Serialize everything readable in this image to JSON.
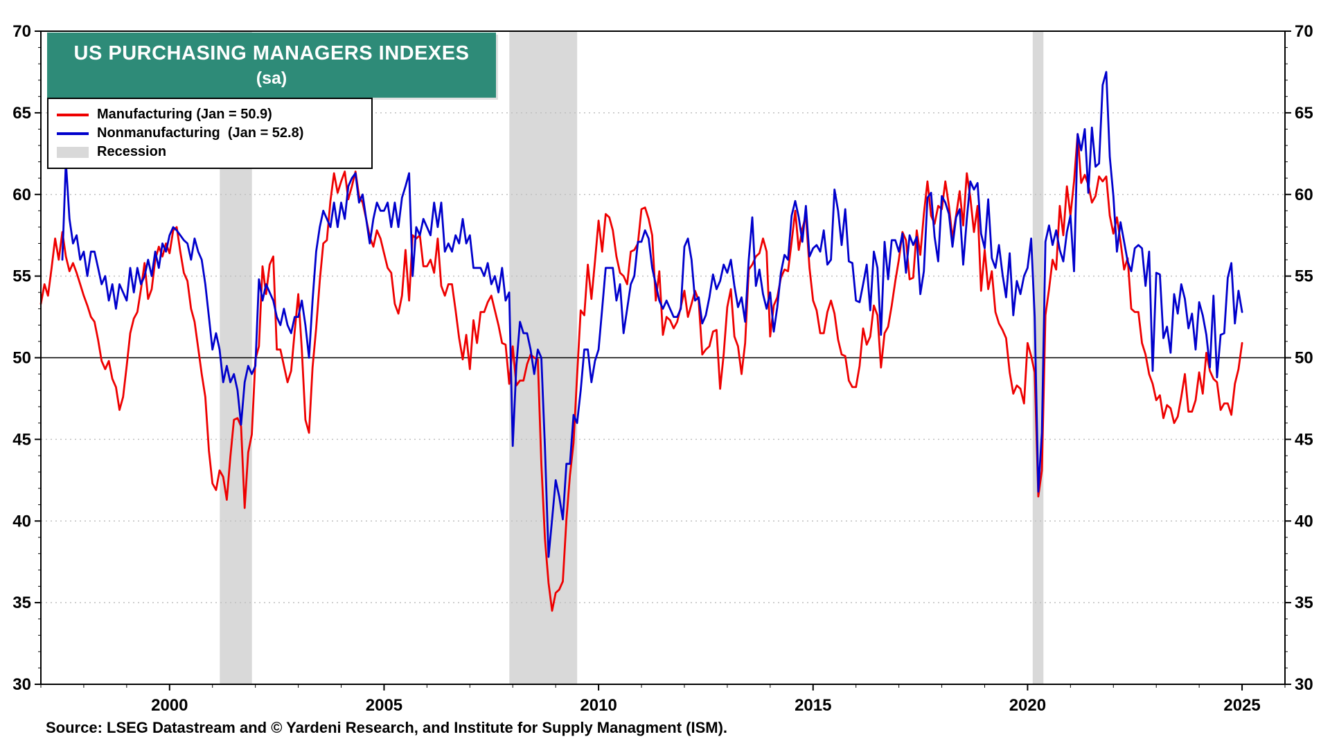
{
  "title": {
    "line1": "US PURCHASING MANAGERS INDEXES",
    "line2": "(sa)",
    "bg_color": "#2E8B78",
    "text_color": "#FFFFFF"
  },
  "legend": {
    "items": [
      {
        "label": "Manufacturing (Jan = 50.9)",
        "color": "#EE0000",
        "swatch": "line"
      },
      {
        "label": "Nonmanufacturing  (Jan = 52.8)",
        "color": "#0000CC",
        "swatch": "line"
      },
      {
        "label": "Recession",
        "color": "#D9D9D9",
        "swatch": "box"
      }
    ]
  },
  "source": "Source: LSEG Datastream and © Yardeni Research, and Institute for Supply Managment (ISM).",
  "chart_data": {
    "type": "line",
    "title": "US PURCHASING MANAGERS INDEXES (sa)",
    "x_range": [
      1997,
      2026
    ],
    "y_range": [
      30,
      70
    ],
    "y_ticks": [
      30,
      35,
      40,
      45,
      50,
      55,
      60,
      65,
      70
    ],
    "x_ticks": [
      2000,
      2005,
      2010,
      2015,
      2020,
      2025
    ],
    "reference_line": 50,
    "grid": "dashed horizontal lines every 5 units, solid line at 50",
    "legend_position": "top-left",
    "recession_color": "#D9D9D9",
    "recessions": [
      [
        2001.17,
        2001.92
      ],
      [
        2007.92,
        2009.5
      ],
      [
        2020.12,
        2020.37
      ]
    ],
    "frequency": "monthly",
    "series": [
      {
        "name": "Manufacturing",
        "color": "#EE0000",
        "start_x": 1997.0,
        "values": [
          53.3,
          54.5,
          53.8,
          55.5,
          57.3,
          56.0,
          57.7,
          56.2,
          55.3,
          55.8,
          55.2,
          54.5,
          53.8,
          53.2,
          52.5,
          52.2,
          51.1,
          49.8,
          49.3,
          49.8,
          48.7,
          48.2,
          46.8,
          47.6,
          49.5,
          51.5,
          52.4,
          52.8,
          54.2,
          55.8,
          53.6,
          54.2,
          56.0,
          56.8,
          56.2,
          57.0,
          56.4,
          57.8,
          58.0,
          56.5,
          55.2,
          54.7,
          53.0,
          52.2,
          50.6,
          49.0,
          47.6,
          44.3,
          42.3,
          41.9,
          43.1,
          42.7,
          41.3,
          43.9,
          46.2,
          46.3,
          45.8,
          40.8,
          44.2,
          45.3,
          49.9,
          50.7,
          55.6,
          53.9,
          55.7,
          56.2,
          50.5,
          50.5,
          49.5,
          48.5,
          49.2,
          51.6,
          53.9,
          50.5,
          46.2,
          45.4,
          49.4,
          51.8,
          54.7,
          57.0,
          57.2,
          59.6,
          61.3,
          60.1,
          60.8,
          61.4,
          59.7,
          60.5,
          61.4,
          59.9,
          59.5,
          58.5,
          57.4,
          56.8,
          57.8,
          57.3,
          56.4,
          55.5,
          55.2,
          53.3,
          52.7,
          53.8,
          56.6,
          53.5,
          57.5,
          57.3,
          57.5,
          55.6,
          55.6,
          56.0,
          55.2,
          57.3,
          54.4,
          53.8,
          54.5,
          54.5,
          52.9,
          51.2,
          49.9,
          51.4,
          49.3,
          52.3,
          50.9,
          52.8,
          52.8,
          53.4,
          53.8,
          52.9,
          52.0,
          50.9,
          50.8,
          48.4,
          50.7,
          48.3,
          48.6,
          48.6,
          49.6,
          50.2,
          50.0,
          49.9,
          43.5,
          38.9,
          36.2,
          34.5,
          35.6,
          35.8,
          36.3,
          40.1,
          42.8,
          44.8,
          48.9,
          52.9,
          52.6,
          55.7,
          53.6,
          55.9,
          58.4,
          56.5,
          58.8,
          58.6,
          57.8,
          56.2,
          55.2,
          55.0,
          54.5,
          56.5,
          56.6,
          57.0,
          59.1,
          59.2,
          58.5,
          57.5,
          53.5,
          55.3,
          51.4,
          52.5,
          52.3,
          51.8,
          52.2,
          53.1,
          54.1,
          52.5,
          53.3,
          54.1,
          53.5,
          50.2,
          50.5,
          50.7,
          51.6,
          51.7,
          48.1,
          50.2,
          53.1,
          54.2,
          51.3,
          50.7,
          49.0,
          50.9,
          55.4,
          55.7,
          56.2,
          56.4,
          57.3,
          56.5,
          51.3,
          53.2,
          53.7,
          54.9,
          55.4,
          55.3,
          57.1,
          59.0,
          56.6,
          57.9,
          58.7,
          55.5,
          53.5,
          52.9,
          51.5,
          51.5,
          52.8,
          53.5,
          52.7,
          51.1,
          50.2,
          50.1,
          48.6,
          48.2,
          48.2,
          49.5,
          51.8,
          50.8,
          51.3,
          53.2,
          52.6,
          49.4,
          51.5,
          51.9,
          53.2,
          54.7,
          56.0,
          57.7,
          57.2,
          54.8,
          54.9,
          57.8,
          56.3,
          58.8,
          60.8,
          58.7,
          58.2,
          59.3,
          59.1,
          60.8,
          59.3,
          57.3,
          58.7,
          60.2,
          58.1,
          61.3,
          59.8,
          57.7,
          59.3,
          54.1,
          56.6,
          54.2,
          55.3,
          52.8,
          52.1,
          51.7,
          51.2,
          49.1,
          47.8,
          48.3,
          48.1,
          47.2,
          50.9,
          50.1,
          49.1,
          41.5,
          43.1,
          52.6,
          54.2,
          56.0,
          55.4,
          59.3,
          57.5,
          60.5,
          58.7,
          60.8,
          63.7,
          60.7,
          61.2,
          60.6,
          59.5,
          59.9,
          61.1,
          60.8,
          61.1,
          58.7,
          57.6,
          58.6,
          57.1,
          55.4,
          56.1,
          53.0,
          52.8,
          52.8,
          50.9,
          50.2,
          49.0,
          48.4,
          47.4,
          47.7,
          46.3,
          47.1,
          46.9,
          46.0,
          46.4,
          47.6,
          49.0,
          46.7,
          46.7,
          47.4,
          49.1,
          47.8,
          50.3,
          49.2,
          48.7,
          48.5,
          46.8,
          47.2,
          47.2,
          46.5,
          48.4,
          49.3,
          50.9
        ]
      },
      {
        "name": "Nonmanufacturing",
        "color": "#0000CC",
        "start_x": 1997.5,
        "values": [
          56.0,
          62.0,
          58.5,
          57.0,
          57.5,
          56.0,
          56.5,
          55.0,
          56.5,
          56.5,
          55.5,
          54.5,
          55.0,
          53.5,
          54.5,
          53.0,
          54.5,
          54.0,
          53.5,
          55.5,
          54.0,
          55.5,
          54.5,
          55.0,
          56.0,
          55.0,
          56.5,
          55.5,
          57.0,
          56.5,
          57.5,
          58.0,
          57.8,
          57.5,
          57.2,
          57.0,
          56.0,
          57.3,
          56.5,
          56.0,
          54.5,
          52.5,
          50.5,
          51.5,
          50.5,
          48.5,
          49.5,
          48.5,
          49.0,
          48.0,
          45.9,
          48.5,
          49.5,
          49.0,
          49.5,
          54.8,
          53.5,
          54.5,
          54.0,
          53.5,
          52.5,
          52.0,
          53.0,
          52.0,
          51.5,
          52.5,
          52.5,
          53.5,
          52.0,
          50.0,
          53.5,
          56.5,
          58.0,
          59.0,
          58.5,
          58.0,
          59.5,
          58.0,
          59.5,
          58.5,
          60.5,
          61.0,
          61.3,
          59.5,
          60.0,
          58.5,
          57.0,
          58.5,
          59.5,
          59.0,
          59.0,
          59.5,
          58.0,
          59.5,
          58.0,
          59.8,
          60.5,
          61.3,
          55.0,
          58.0,
          57.5,
          58.5,
          58.0,
          57.5,
          59.5,
          58.0,
          59.5,
          56.5,
          57.0,
          56.5,
          57.5,
          57.0,
          58.5,
          57.0,
          57.5,
          55.5,
          55.5,
          55.5,
          55.0,
          55.8,
          54.5,
          55.0,
          54.0,
          55.5,
          53.5,
          54.0,
          44.6,
          49.5,
          52.2,
          51.5,
          51.5,
          50.5,
          49.0,
          50.5,
          50.0,
          44.5,
          37.8,
          40.1,
          42.5,
          41.5,
          40.1,
          43.5,
          43.5,
          46.5,
          46.0,
          48.0,
          50.5,
          50.5,
          48.5,
          49.8,
          50.5,
          53.0,
          55.5,
          55.5,
          55.5,
          53.5,
          54.5,
          51.5,
          53.0,
          54.5,
          55.0,
          57.1,
          57.1,
          57.8,
          57.3,
          55.5,
          54.5,
          53.5,
          53.0,
          53.5,
          53.0,
          52.5,
          52.5,
          53.0,
          56.8,
          57.3,
          56.0,
          53.5,
          53.7,
          52.1,
          52.6,
          53.7,
          55.1,
          54.2,
          54.7,
          55.7,
          55.2,
          56.0,
          54.4,
          53.1,
          53.7,
          52.2,
          56.0,
          58.6,
          54.4,
          55.4,
          53.9,
          53.0,
          54.0,
          51.6,
          53.1,
          55.2,
          56.3,
          56.0,
          58.7,
          59.6,
          58.6,
          57.1,
          59.3,
          56.2,
          56.7,
          56.9,
          56.5,
          57.8,
          55.7,
          56.0,
          60.3,
          59.0,
          56.9,
          59.1,
          55.9,
          55.8,
          53.5,
          53.4,
          54.5,
          55.7,
          52.9,
          56.5,
          55.5,
          51.4,
          57.1,
          54.8,
          57.2,
          57.2,
          56.5,
          57.6,
          55.2,
          57.5,
          56.9,
          57.4,
          53.9,
          55.3,
          59.8,
          60.1,
          57.4,
          55.9,
          59.9,
          59.5,
          58.8,
          56.8,
          58.6,
          59.1,
          55.7,
          58.5,
          60.8,
          60.3,
          60.7,
          57.6,
          56.7,
          59.7,
          56.1,
          55.5,
          56.9,
          55.1,
          53.7,
          56.4,
          52.6,
          54.7,
          53.9,
          55.0,
          55.5,
          57.3,
          52.5,
          41.8,
          45.4,
          57.1,
          58.1,
          56.9,
          57.8,
          56.6,
          55.9,
          57.7,
          58.7,
          55.3,
          63.7,
          62.7,
          64.0,
          60.1,
          64.1,
          61.7,
          61.9,
          66.7,
          67.5,
          62.3,
          59.9,
          56.5,
          58.3,
          57.1,
          55.9,
          55.3,
          56.7,
          56.9,
          56.7,
          54.4,
          56.5,
          49.2,
          55.2,
          55.1,
          51.2,
          51.9,
          50.3,
          53.9,
          52.7,
          54.5,
          53.6,
          51.8,
          52.7,
          50.5,
          53.4,
          52.6,
          51.4,
          49.4,
          53.8,
          48.8,
          51.4,
          51.5,
          54.9,
          55.8,
          52.1,
          54.1,
          52.8
        ]
      }
    ]
  }
}
